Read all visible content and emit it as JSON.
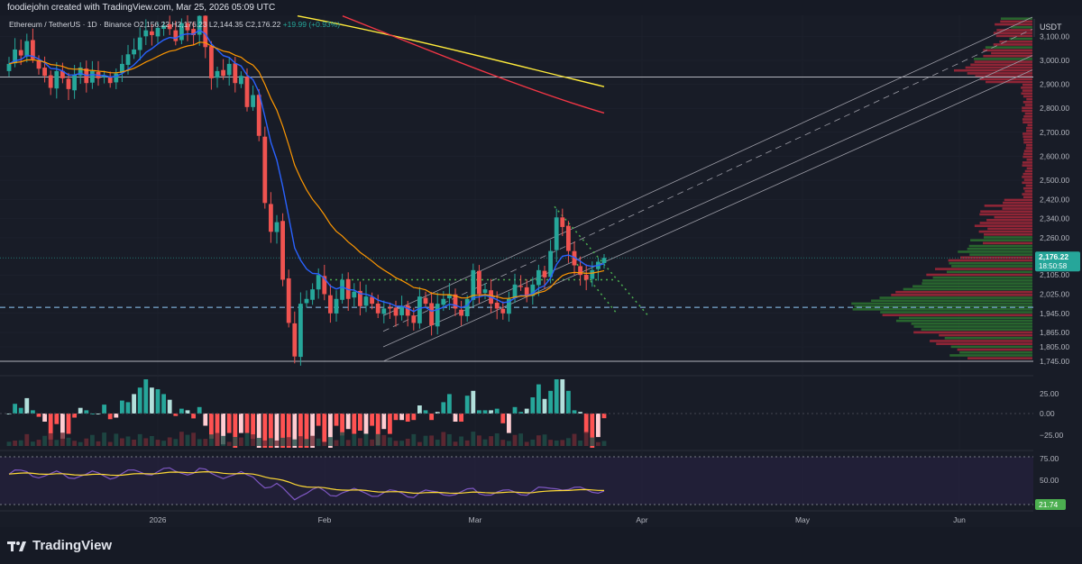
{
  "header": {
    "credit": "foodiejohn created with TradingView.com, Mar 25, 2026 05:09 UTC"
  },
  "legend": {
    "symbol": "Ethereum / TetherUS · 1D · Binance",
    "ohlc": "O2,156.22 H2,176.23 L2,144.35 C2,176.22",
    "change": "+19.99 (+0.93%)"
  },
  "price_axis": {
    "currency": "USDT",
    "current_price": "2,176.22",
    "countdown": "18:50:58"
  },
  "footer": {
    "brand": "TradingView"
  },
  "colors": {
    "background": "#181c27",
    "up": "#26a69a",
    "down": "#ef5350",
    "ema_fast": "#2962ff",
    "ema_mid": "#ff9800",
    "ma_slow_yellow": "#ffeb3b",
    "ma_slow_red": "#f23645"
  },
  "chart_data": {
    "type": "candlestick",
    "title": "Ethereum / TetherUS · 1D · Binance",
    "ylim": [
      1745,
      3180
    ],
    "y_ticks": [
      "3,100.00",
      "3,000.00",
      "2,900.00",
      "2,800.00",
      "2,700.00",
      "2,600.00",
      "2,500.00",
      "2,420.00",
      "2,340.00",
      "2,260.00",
      "2,105.00",
      "2,025.00",
      "1,945.00",
      "1,865.00",
      "1,805.00",
      "1,745.00"
    ],
    "x_ticks": [
      "2026",
      "Feb",
      "Mar",
      "Apr",
      "May",
      "Jun"
    ],
    "current_price": 2176.22,
    "horizontal_levels": [
      2930,
      1745
    ],
    "dashed_support": 1970,
    "dotted_level": 2085,
    "candles_close": [
      2985,
      3045,
      3020,
      3080,
      3005,
      2965,
      2935,
      2885,
      2955,
      2925,
      2880,
      2940,
      2970,
      2905,
      2955,
      2925,
      2935,
      2905,
      2945,
      2985,
      3025,
      3045,
      3095,
      3125,
      3105,
      3135,
      3145,
      3130,
      3080,
      3155,
      3125,
      3105,
      3185,
      3055,
      2925,
      2955,
      2935,
      2985,
      2905,
      2935,
      2805,
      2855,
      2685,
      2405,
      2285,
      2325,
      2085,
      1905,
      1765,
      1985,
      2005,
      2045,
      2105,
      2025,
      1945,
      2005,
      2085,
      2005,
      2035,
      1975,
      2015,
      1985,
      1945,
      1965,
      1965,
      1935,
      1975,
      1935,
      1905,
      2015,
      1985,
      1895,
      1985,
      2005,
      2025,
      1965,
      1935,
      2005,
      2125,
      2025,
      2045,
      1985,
      1965,
      1945,
      2005,
      2065,
      2055,
      2015,
      2065,
      2125,
      2095,
      2205,
      2345,
      2305,
      2205,
      2145,
      2105,
      2085,
      2125,
      2160,
      2176.22
    ],
    "volume_profile_poc": 1970,
    "indicators": {
      "macd_histogram_axis": [
        "25.00",
        "0.00",
        "−25.00"
      ],
      "rsi_axis": [
        "75.00",
        "50.00"
      ],
      "rsi_value": "21.74"
    }
  }
}
